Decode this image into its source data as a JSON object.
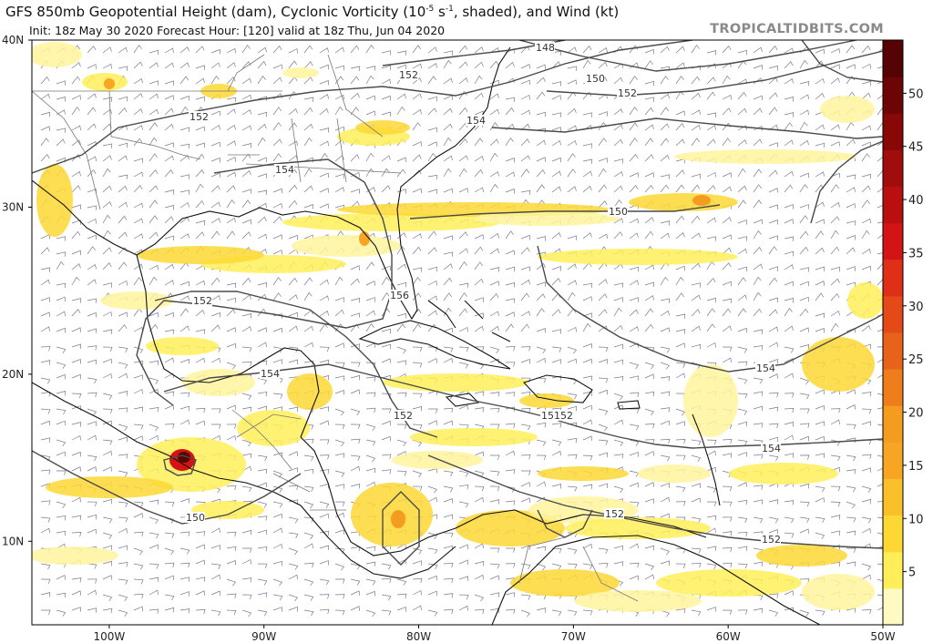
{
  "header": {
    "title": "GFS 850mb Geopotential Height (dam), Cyclonic Vorticity (10",
    "title_sup": "-5",
    "title_tail": " s",
    "title_sup2": "-1",
    "title_end": ", shaded), and Wind (kt)",
    "subtitle": "Init: 18z May 30 2020   Forecast Hour: [120]   valid at 18z Thu, Jun 04 2020",
    "brand": "TROPICALTIDBITS.COM"
  },
  "map": {
    "lon_range": [
      -105,
      -50
    ],
    "lat_range": [
      5,
      40
    ],
    "lat_labels": [
      "40N",
      "30N",
      "20N",
      "10N"
    ],
    "lon_labels": [
      "100W",
      "90W",
      "80W",
      "70W",
      "60W",
      "50W"
    ],
    "contour_labels": [
      "148",
      "152",
      "150",
      "152",
      "152",
      "154",
      "154",
      "156",
      "152",
      "154",
      "150",
      "152",
      "156",
      "154",
      "154",
      "152",
      "150",
      "152",
      "152"
    ]
  },
  "colorbar": {
    "ticks": [
      "50",
      "45",
      "40",
      "35",
      "30",
      "25",
      "20",
      "15",
      "10",
      "5"
    ],
    "colors": [
      "#fff9c4",
      "#ffee58",
      "#fdd835",
      "#f9c02a",
      "#f6a623",
      "#f39c20",
      "#ee7d1c",
      "#e9621a",
      "#e44a18",
      "#df2f16",
      "#d41414",
      "#b90f0f",
      "#a10c0c",
      "#880808",
      "#6e0505",
      "#550303"
    ]
  },
  "colors": {
    "contour": "#4a4a4a",
    "coast": "#111111",
    "border": "#777777",
    "barb": "#6b6b8a",
    "frame": "#000000"
  }
}
